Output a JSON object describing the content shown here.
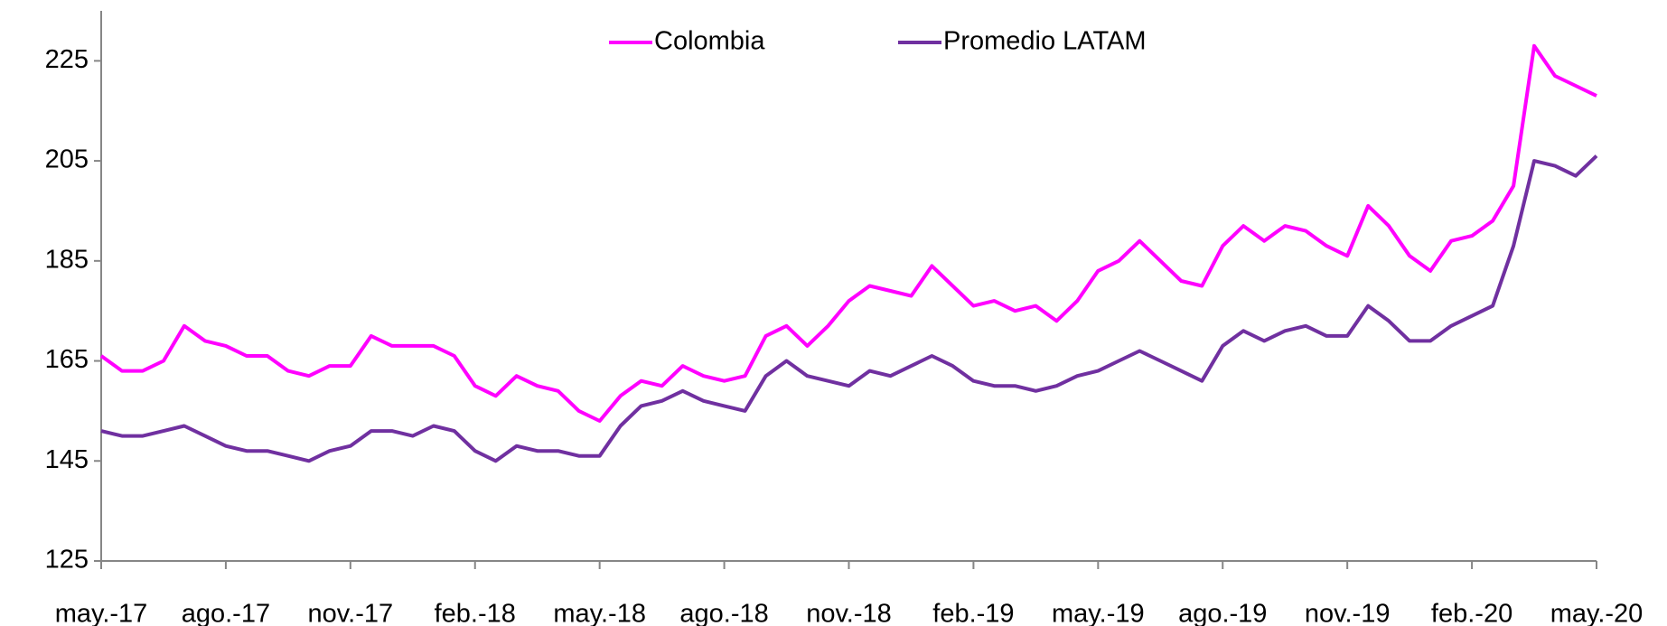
{
  "chart_data": {
    "type": "line",
    "categories": [
      "may.-17",
      null,
      null,
      null,
      null,
      null,
      "ago.-17",
      null,
      null,
      null,
      null,
      null,
      "nov.-17",
      null,
      null,
      null,
      null,
      null,
      "feb.-18",
      null,
      null,
      null,
      null,
      null,
      "may.-18",
      null,
      null,
      null,
      null,
      null,
      "ago.-18",
      null,
      null,
      null,
      null,
      null,
      "nov.-18",
      null,
      null,
      null,
      null,
      null,
      "feb.-19",
      null,
      null,
      null,
      null,
      null,
      "may.-19",
      null,
      null,
      null,
      null,
      null,
      "ago.-19",
      null,
      null,
      null,
      null,
      null,
      "nov.-19",
      null,
      null,
      null,
      null,
      null,
      "feb.-20",
      null,
      null,
      null,
      null,
      null,
      "may.-20"
    ],
    "series": [
      {
        "name": "Colombia",
        "color": "#ff00ff",
        "values": [
          166,
          163,
          163,
          165,
          172,
          169,
          168,
          166,
          166,
          163,
          162,
          164,
          164,
          170,
          168,
          168,
          168,
          166,
          160,
          158,
          162,
          160,
          159,
          155,
          153,
          158,
          161,
          160,
          164,
          162,
          161,
          162,
          170,
          172,
          168,
          172,
          177,
          180,
          179,
          178,
          184,
          180,
          176,
          177,
          175,
          176,
          173,
          177,
          183,
          185,
          189,
          185,
          181,
          180,
          188,
          192,
          189,
          192,
          191,
          188,
          186,
          196,
          192,
          186,
          183,
          189,
          190,
          193,
          200,
          228,
          222,
          220,
          218
        ]
      },
      {
        "name": "Promedio LATAM",
        "color": "#7030a0",
        "values": [
          151,
          150,
          150,
          151,
          152,
          150,
          148,
          147,
          147,
          146,
          145,
          147,
          148,
          151,
          151,
          150,
          152,
          151,
          147,
          145,
          148,
          147,
          147,
          146,
          146,
          152,
          156,
          157,
          159,
          157,
          156,
          155,
          162,
          165,
          162,
          161,
          160,
          163,
          162,
          164,
          166,
          164,
          161,
          160,
          160,
          159,
          160,
          162,
          163,
          165,
          167,
          165,
          163,
          161,
          168,
          171,
          169,
          171,
          172,
          170,
          170,
          176,
          173,
          169,
          169,
          172,
          174,
          176,
          188,
          205,
          204,
          202,
          206
        ]
      }
    ],
    "ylim": [
      125,
      235
    ],
    "yticks": [
      125,
      145,
      165,
      185,
      205,
      225
    ],
    "grid": false,
    "legend": "top"
  }
}
